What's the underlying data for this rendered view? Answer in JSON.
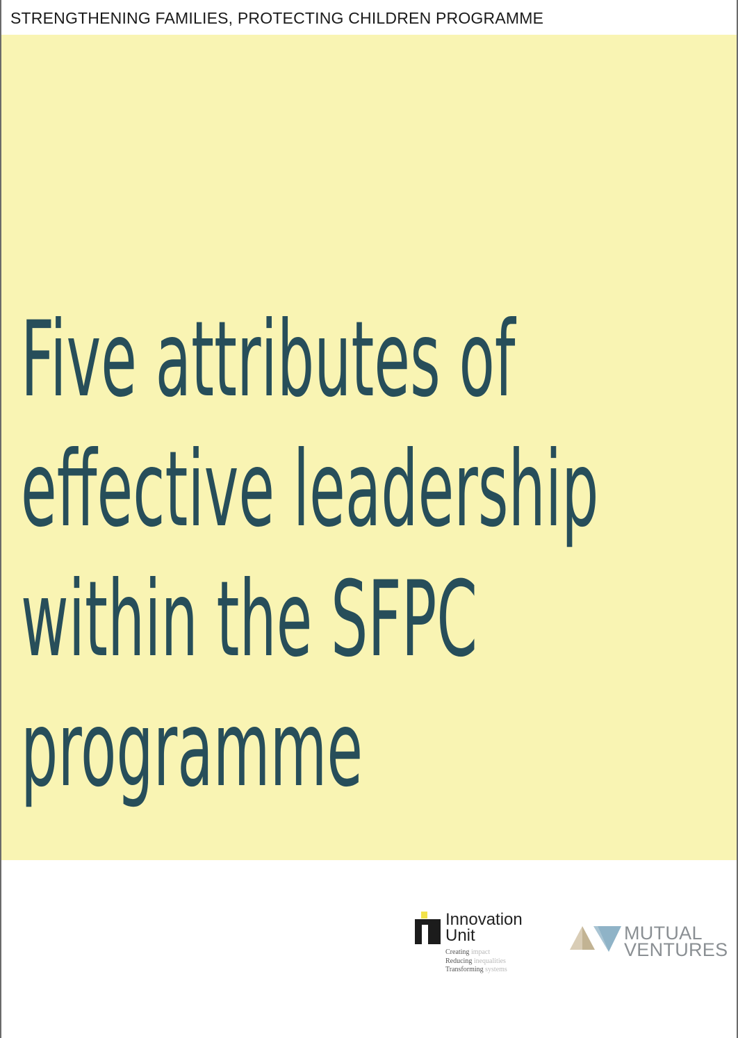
{
  "header": {
    "programme_name": "STRENGTHENING FAMILIES, PROTECTING CHILDREN PROGRAMME"
  },
  "cover": {
    "title_lines": [
      "Five attributes of",
      "effective leadership",
      "within the SFPC",
      "programme"
    ],
    "background_color": "#f9f4b3",
    "title_color": "#274e5a"
  },
  "logos": {
    "innovation_unit": {
      "name_line1": "Innovation",
      "name_line2": "Unit",
      "tagline": [
        {
          "word": "Creating",
          "accent": "impact"
        },
        {
          "word": "Reducing",
          "accent": "inequalities"
        },
        {
          "word": "Transforming",
          "accent": "systems"
        }
      ]
    },
    "mutual_ventures": {
      "name_line1": "MUTUAL",
      "name_line2": "VENTURES"
    }
  }
}
